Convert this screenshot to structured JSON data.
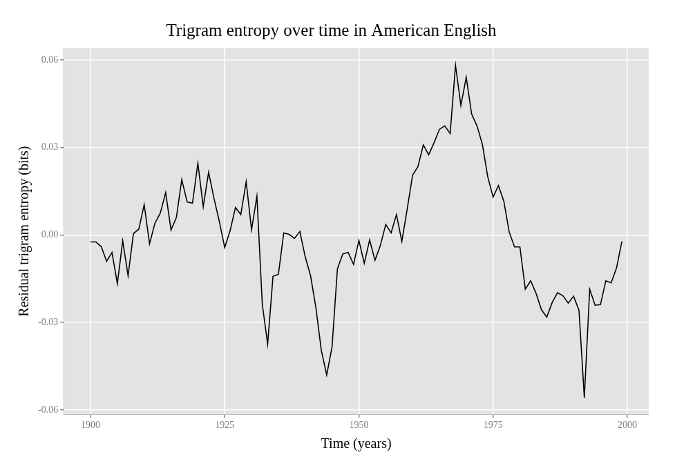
{
  "chart_data": {
    "type": "line",
    "title": "Trigram entropy over time in American English",
    "x_label": "Time (years)",
    "y_label": "Residual trigram entropy (bits)",
    "x": [
      1900,
      1901,
      1902,
      1903,
      1904,
      1905,
      1906,
      1907,
      1908,
      1909,
      1910,
      1911,
      1912,
      1913,
      1914,
      1915,
      1916,
      1917,
      1918,
      1919,
      1920,
      1921,
      1922,
      1923,
      1924,
      1925,
      1926,
      1927,
      1928,
      1929,
      1930,
      1931,
      1932,
      1933,
      1934,
      1935,
      1936,
      1937,
      1938,
      1939,
      1940,
      1941,
      1942,
      1943,
      1944,
      1945,
      1946,
      1947,
      1948,
      1949,
      1950,
      1951,
      1952,
      1953,
      1954,
      1955,
      1956,
      1957,
      1958,
      1959,
      1960,
      1961,
      1962,
      1963,
      1964,
      1965,
      1966,
      1967,
      1968,
      1969,
      1970,
      1971,
      1972,
      1973,
      1974,
      1975,
      1976,
      1977,
      1978,
      1979,
      1980,
      1981,
      1982,
      1983,
      1984,
      1985,
      1986,
      1987,
      1988,
      1989,
      1990,
      1991,
      1992,
      1993,
      1994,
      1995,
      1996,
      1997,
      1998,
      1999
    ],
    "values": [
      -0.0024,
      -0.0024,
      -0.004,
      -0.009,
      -0.006,
      -0.0167,
      -0.002,
      -0.014,
      0.0005,
      0.002,
      0.0104,
      -0.003,
      0.004,
      0.0075,
      0.0145,
      0.0017,
      0.006,
      0.019,
      0.0113,
      0.0109,
      0.0246,
      0.0097,
      0.0215,
      0.0126,
      0.0046,
      -0.0043,
      0.0014,
      0.0094,
      0.007,
      0.0183,
      0.0017,
      0.0133,
      -0.0237,
      -0.0374,
      -0.0142,
      -0.0135,
      0.0007,
      0.0002,
      -0.0012,
      0.0012,
      -0.0075,
      -0.014,
      -0.0251,
      -0.0396,
      -0.048,
      -0.0384,
      -0.0116,
      -0.0065,
      -0.006,
      -0.0101,
      -0.0019,
      -0.0097,
      -0.0017,
      -0.0087,
      -0.0036,
      0.0036,
      0.0007,
      0.007,
      -0.0022,
      0.0089,
      0.0205,
      0.0234,
      0.0309,
      0.0275,
      0.0316,
      0.0362,
      0.0374,
      0.0348,
      0.0582,
      0.0444,
      0.0541,
      0.0415,
      0.0374,
      0.0311,
      0.02,
      0.013,
      0.0169,
      0.0116,
      0.001,
      -0.0041,
      -0.0041,
      -0.0186,
      -0.0157,
      -0.02,
      -0.0256,
      -0.0282,
      -0.0232,
      -0.0198,
      -0.0208,
      -0.0234,
      -0.021,
      -0.0258,
      -0.0558,
      -0.0186,
      -0.0241,
      -0.0239,
      -0.0157,
      -0.0164,
      -0.0113,
      -0.0022
    ],
    "color": "#000000",
    "xlim": [
      1895,
      2004
    ],
    "xticks": [
      {
        "value": 1900,
        "label": "1900"
      },
      {
        "value": 1925,
        "label": "1925"
      },
      {
        "value": 1950,
        "label": "1950"
      },
      {
        "value": 1975,
        "label": "1975"
      },
      {
        "value": 2000,
        "label": "2000"
      }
    ],
    "ylim": [
      -0.0615,
      0.064
    ],
    "yticks": [
      {
        "value": -0.06,
        "label": "-0.06"
      },
      {
        "value": -0.03,
        "label": "-0.03"
      },
      {
        "value": 0,
        "label": "0.00"
      },
      {
        "value": 0.03,
        "label": "0.03"
      },
      {
        "value": 0.06,
        "label": "0.06"
      }
    ],
    "grid": true
  }
}
